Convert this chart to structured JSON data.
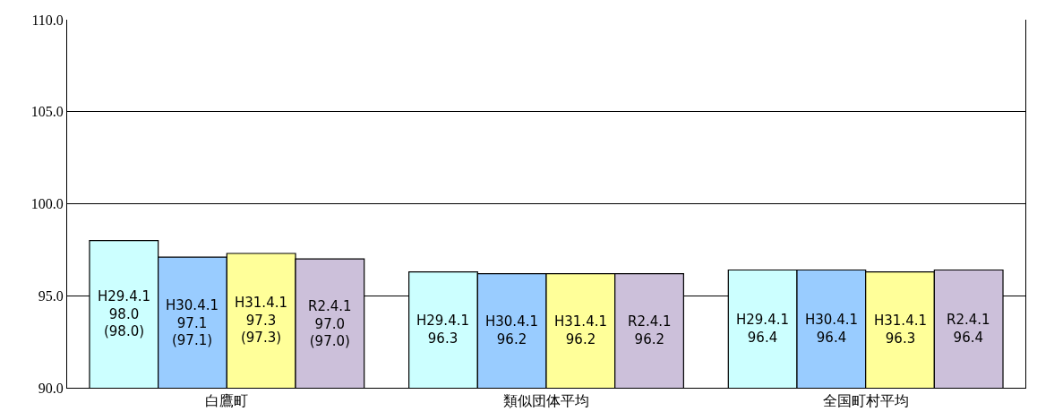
{
  "chart_data": {
    "type": "bar",
    "categories": [
      "白鷹町",
      "類似団体平均",
      "全国町村平均"
    ],
    "series": [
      {
        "name": "H29.4.1",
        "color": "#ccffff",
        "values": [
          98.0,
          96.3,
          96.4
        ],
        "value_labels": [
          "98.0\n(98.0)",
          "96.3",
          "96.4"
        ]
      },
      {
        "name": "H30.4.1",
        "color": "#99ccff",
        "values": [
          97.1,
          96.2,
          96.4
        ],
        "value_labels": [
          "97.1\n(97.1)",
          "96.2",
          "96.4"
        ]
      },
      {
        "name": "H31.4.1",
        "color": "#ffff99",
        "values": [
          97.3,
          96.2,
          96.3
        ],
        "value_labels": [
          "97.3\n(97.3)",
          "96.2",
          "96.3"
        ]
      },
      {
        "name": "R2.4.1",
        "color": "#ccc0da",
        "values": [
          97.0,
          96.2,
          96.4
        ],
        "value_labels": [
          "97.0\n(97.0)",
          "96.2",
          "96.4"
        ]
      }
    ],
    "ylim": [
      90,
      110
    ],
    "yticks": [
      {
        "value": 90,
        "label": "90.0"
      },
      {
        "value": 95,
        "label": "95.0"
      },
      {
        "value": 100,
        "label": "100.0"
      },
      {
        "value": 105,
        "label": "105.0"
      },
      {
        "value": 110,
        "label": "110.0"
      }
    ],
    "grid": "y",
    "legend": false
  }
}
